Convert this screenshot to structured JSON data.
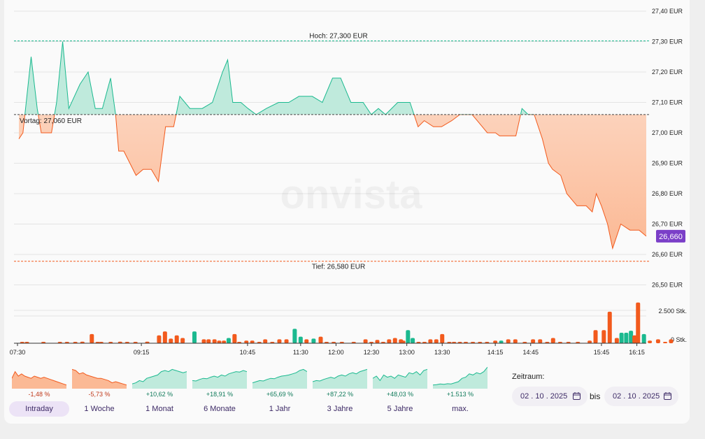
{
  "chart_data": {
    "type": "area",
    "watermark": "onvista",
    "currency": "EUR",
    "previous_close": 27.06,
    "high": 27.3,
    "low": 26.58,
    "last_price": "26,660",
    "high_label": "Hoch: 27,300 EUR",
    "low_label": "Tief: 26,580 EUR",
    "prev_label": "Vortag: 27,060 EUR",
    "ylim": [
      26.45,
      27.46
    ],
    "y_ticks": [
      {
        "value": 27.4,
        "label": "27,40 EUR"
      },
      {
        "value": 27.3,
        "label": "27,30 EUR"
      },
      {
        "value": 27.2,
        "label": "27,20 EUR"
      },
      {
        "value": 27.1,
        "label": "27,10 EUR"
      },
      {
        "value": 27.0,
        "label": "27,00 EUR"
      },
      {
        "value": 26.9,
        "label": "26,90 EUR"
      },
      {
        "value": 26.8,
        "label": "26,80 EUR"
      },
      {
        "value": 26.7,
        "label": "26,70 EUR"
      },
      {
        "value": 26.6,
        "label": "26,60 EUR"
      },
      {
        "value": 26.5,
        "label": "26,50 EUR"
      }
    ],
    "x_range_minutes": [
      450,
      980
    ],
    "x_ticks": [
      {
        "t": 450,
        "label": "07:30"
      },
      {
        "t": 555,
        "label": "09:15"
      },
      {
        "t": 645,
        "label": "10:45"
      },
      {
        "t": 690,
        "label": "11:30"
      },
      {
        "t": 720,
        "label": "12:00"
      },
      {
        "t": 750,
        "label": "12:30"
      },
      {
        "t": 780,
        "label": "13:00"
      },
      {
        "t": 810,
        "label": "13:30"
      },
      {
        "t": 855,
        "label": "14:15"
      },
      {
        "t": 885,
        "label": "14:45"
      },
      {
        "t": 945,
        "label": "15:45"
      },
      {
        "t": 975,
        "label": "16:15"
      }
    ],
    "price_series": [
      [
        0,
        26.98
      ],
      [
        4,
        27.0
      ],
      [
        12,
        27.25
      ],
      [
        18,
        27.08
      ],
      [
        22,
        27.0
      ],
      [
        32,
        27.0
      ],
      [
        37,
        27.1
      ],
      [
        43,
        27.3
      ],
      [
        49,
        27.08
      ],
      [
        60,
        27.16
      ],
      [
        68,
        27.2
      ],
      [
        75,
        27.08
      ],
      [
        82,
        27.08
      ],
      [
        90,
        27.18
      ],
      [
        95,
        27.06
      ],
      [
        98,
        26.94
      ],
      [
        103,
        26.94
      ],
      [
        115,
        26.86
      ],
      [
        122,
        26.88
      ],
      [
        130,
        26.88
      ],
      [
        137,
        26.84
      ],
      [
        144,
        27.02
      ],
      [
        152,
        27.02
      ],
      [
        158,
        27.12
      ],
      [
        168,
        27.08
      ],
      [
        180,
        27.08
      ],
      [
        190,
        27.1
      ],
      [
        200,
        27.2
      ],
      [
        205,
        27.24
      ],
      [
        210,
        27.1
      ],
      [
        218,
        27.1
      ],
      [
        225,
        27.08
      ],
      [
        233,
        27.06
      ],
      [
        243,
        27.08
      ],
      [
        255,
        27.1
      ],
      [
        265,
        27.1
      ],
      [
        275,
        27.12
      ],
      [
        288,
        27.12
      ],
      [
        298,
        27.1
      ],
      [
        308,
        27.18
      ],
      [
        316,
        27.18
      ],
      [
        326,
        27.1
      ],
      [
        338,
        27.1
      ],
      [
        346,
        27.06
      ],
      [
        353,
        27.08
      ],
      [
        360,
        27.06
      ],
      [
        372,
        27.1
      ],
      [
        384,
        27.1
      ],
      [
        392,
        27.02
      ],
      [
        398,
        27.04
      ],
      [
        407,
        27.02
      ],
      [
        415,
        27.02
      ],
      [
        425,
        27.04
      ],
      [
        433,
        27.06
      ],
      [
        445,
        27.06
      ],
      [
        450,
        27.04
      ],
      [
        460,
        27.0
      ],
      [
        468,
        27.0
      ],
      [
        472,
        26.99
      ],
      [
        480,
        26.99
      ],
      [
        488,
        26.99
      ],
      [
        494,
        27.08
      ],
      [
        500,
        27.06
      ],
      [
        506,
        27.06
      ],
      [
        514,
        26.98
      ],
      [
        520,
        26.9
      ],
      [
        524,
        26.88
      ],
      [
        532,
        26.86
      ],
      [
        538,
        26.8
      ],
      [
        548,
        26.76
      ],
      [
        557,
        26.76
      ],
      [
        563,
        26.74
      ],
      [
        567,
        26.8
      ],
      [
        572,
        26.76
      ],
      [
        578,
        26.7
      ],
      [
        583,
        26.62
      ],
      [
        591,
        26.7
      ],
      [
        600,
        26.68
      ],
      [
        609,
        26.68
      ],
      [
        616,
        26.66
      ]
    ],
    "volume_ticks": [
      {
        "value": 2500,
        "label": "2.500 Stk."
      },
      {
        "value": 0,
        "label": "0 Stk."
      }
    ],
    "volume_max": 3300,
    "volumes": [
      {
        "t": 454,
        "v": 30,
        "dir": "down"
      },
      {
        "t": 458,
        "v": 60,
        "dir": "down"
      },
      {
        "t": 472,
        "v": 20,
        "dir": "down"
      },
      {
        "t": 486,
        "v": 30,
        "dir": "down"
      },
      {
        "t": 492,
        "v": 40,
        "dir": "down"
      },
      {
        "t": 499,
        "v": 60,
        "dir": "down"
      },
      {
        "t": 505,
        "v": 120,
        "dir": "down"
      },
      {
        "t": 513,
        "v": 700,
        "dir": "down"
      },
      {
        "t": 518,
        "v": 40,
        "dir": "down"
      },
      {
        "t": 521,
        "v": 30,
        "dir": "down"
      },
      {
        "t": 529,
        "v": 80,
        "dir": "down"
      },
      {
        "t": 537,
        "v": 120,
        "dir": "down"
      },
      {
        "t": 543,
        "v": 100,
        "dir": "down"
      },
      {
        "t": 550,
        "v": 30,
        "dir": "down"
      },
      {
        "t": 560,
        "v": 120,
        "dir": "down"
      },
      {
        "t": 570,
        "v": 600,
        "dir": "down"
      },
      {
        "t": 575,
        "v": 900,
        "dir": "down"
      },
      {
        "t": 580,
        "v": 350,
        "dir": "down"
      },
      {
        "t": 585,
        "v": 600,
        "dir": "down"
      },
      {
        "t": 590,
        "v": 400,
        "dir": "down"
      },
      {
        "t": 600,
        "v": 900,
        "dir": "up"
      },
      {
        "t": 608,
        "v": 300,
        "dir": "down"
      },
      {
        "t": 612,
        "v": 300,
        "dir": "down"
      },
      {
        "t": 617,
        "v": 300,
        "dir": "down"
      },
      {
        "t": 621,
        "v": 200,
        "dir": "down"
      },
      {
        "t": 625,
        "v": 200,
        "dir": "down"
      },
      {
        "t": 629,
        "v": 400,
        "dir": "up"
      },
      {
        "t": 634,
        "v": 700,
        "dir": "down"
      },
      {
        "t": 638,
        "v": 100,
        "dir": "down"
      },
      {
        "t": 644,
        "v": 200,
        "dir": "down"
      },
      {
        "t": 649,
        "v": 200,
        "dir": "down"
      },
      {
        "t": 655,
        "v": 50,
        "dir": "down"
      },
      {
        "t": 660,
        "v": 300,
        "dir": "down"
      },
      {
        "t": 666,
        "v": 100,
        "dir": "down"
      },
      {
        "t": 672,
        "v": 300,
        "dir": "down"
      },
      {
        "t": 678,
        "v": 300,
        "dir": "down"
      },
      {
        "t": 685,
        "v": 1100,
        "dir": "up"
      },
      {
        "t": 690,
        "v": 500,
        "dir": "up"
      },
      {
        "t": 695,
        "v": 300,
        "dir": "down"
      },
      {
        "t": 701,
        "v": 350,
        "dir": "up"
      },
      {
        "t": 707,
        "v": 500,
        "dir": "down"
      },
      {
        "t": 712,
        "v": 100,
        "dir": "down"
      },
      {
        "t": 718,
        "v": 30,
        "dir": "down"
      },
      {
        "t": 725,
        "v": 50,
        "dir": "down"
      },
      {
        "t": 735,
        "v": 30,
        "dir": "down"
      },
      {
        "t": 745,
        "v": 300,
        "dir": "down"
      },
      {
        "t": 750,
        "v": 100,
        "dir": "down"
      },
      {
        "t": 755,
        "v": 250,
        "dir": "down"
      },
      {
        "t": 760,
        "v": 50,
        "dir": "down"
      },
      {
        "t": 765,
        "v": 300,
        "dir": "down"
      },
      {
        "t": 770,
        "v": 400,
        "dir": "down"
      },
      {
        "t": 775,
        "v": 300,
        "dir": "down"
      },
      {
        "t": 777,
        "v": 200,
        "dir": "down"
      },
      {
        "t": 781,
        "v": 1000,
        "dir": "up"
      },
      {
        "t": 785,
        "v": 400,
        "dir": "up"
      },
      {
        "t": 790,
        "v": 50,
        "dir": "down"
      },
      {
        "t": 795,
        "v": 50,
        "dir": "down"
      },
      {
        "t": 800,
        "v": 300,
        "dir": "down"
      },
      {
        "t": 805,
        "v": 300,
        "dir": "down"
      },
      {
        "t": 810,
        "v": 700,
        "dir": "down"
      },
      {
        "t": 816,
        "v": 30,
        "dir": "down"
      },
      {
        "t": 820,
        "v": 50,
        "dir": "down"
      },
      {
        "t": 825,
        "v": 50,
        "dir": "down"
      },
      {
        "t": 830,
        "v": 30,
        "dir": "down"
      },
      {
        "t": 836,
        "v": 50,
        "dir": "down"
      },
      {
        "t": 842,
        "v": 50,
        "dir": "down"
      },
      {
        "t": 848,
        "v": 30,
        "dir": "down"
      },
      {
        "t": 855,
        "v": 200,
        "dir": "down"
      },
      {
        "t": 860,
        "v": 200,
        "dir": "up"
      },
      {
        "t": 866,
        "v": 300,
        "dir": "down"
      },
      {
        "t": 872,
        "v": 300,
        "dir": "down"
      },
      {
        "t": 880,
        "v": 30,
        "dir": "down"
      },
      {
        "t": 887,
        "v": 300,
        "dir": "down"
      },
      {
        "t": 893,
        "v": 300,
        "dir": "down"
      },
      {
        "t": 899,
        "v": 50,
        "dir": "down"
      },
      {
        "t": 904,
        "v": 400,
        "dir": "down"
      },
      {
        "t": 910,
        "v": 50,
        "dir": "down"
      },
      {
        "t": 917,
        "v": 30,
        "dir": "down"
      },
      {
        "t": 925,
        "v": 50,
        "dir": "down"
      },
      {
        "t": 935,
        "v": 200,
        "dir": "down"
      },
      {
        "t": 940,
        "v": 1000,
        "dir": "down"
      },
      {
        "t": 947,
        "v": 1000,
        "dir": "down"
      },
      {
        "t": 952,
        "v": 2400,
        "dir": "down"
      },
      {
        "t": 958,
        "v": 400,
        "dir": "down"
      },
      {
        "t": 962,
        "v": 800,
        "dir": "up"
      },
      {
        "t": 966,
        "v": 800,
        "dir": "up"
      },
      {
        "t": 970,
        "v": 950,
        "dir": "up"
      },
      {
        "t": 973,
        "v": 600,
        "dir": "down"
      },
      {
        "t": 976,
        "v": 3100,
        "dir": "down"
      },
      {
        "t": 981,
        "v": 700,
        "dir": "up"
      },
      {
        "t": 986,
        "v": 200,
        "dir": "down"
      },
      {
        "t": 993,
        "v": 300,
        "dir": "down"
      },
      {
        "t": 999,
        "v": 100,
        "dir": "down"
      },
      {
        "t": 1004,
        "v": 300,
        "dir": "down"
      }
    ]
  },
  "colors": {
    "up": "#1bb98f",
    "up_fill": "#bfeadc",
    "down": "#f25a1d",
    "down_fill": "#fbb995",
    "label_bg": "#7b3fc8"
  },
  "ranges": [
    {
      "label": "Intraday",
      "change": "-1,48 %",
      "trend": "down",
      "active": true,
      "spark": [
        0.6,
        0.3,
        0.5,
        0.4,
        0.5,
        0.55,
        0.6,
        0.5,
        0.55,
        0.6,
        0.55,
        0.6,
        0.65,
        0.7,
        0.75,
        0.8,
        0.85,
        0.9
      ]
    },
    {
      "label": "1 Woche",
      "change": "-5,73 %",
      "trend": "down",
      "active": false,
      "spark": [
        0.2,
        0.25,
        0.4,
        0.35,
        0.45,
        0.5,
        0.55,
        0.6,
        0.6,
        0.65,
        0.7,
        0.8,
        0.75,
        0.8,
        0.85,
        0.9
      ]
    },
    {
      "label": "1 Monat",
      "change": "+10,62 %",
      "trend": "up",
      "active": false,
      "spark": [
        0.85,
        0.8,
        0.7,
        0.75,
        0.6,
        0.55,
        0.5,
        0.45,
        0.3,
        0.25,
        0.3,
        0.2,
        0.25,
        0.3,
        0.35,
        0.3
      ]
    },
    {
      "label": "6 Monate",
      "change": "+18,91 %",
      "trend": "up",
      "active": false,
      "spark": [
        0.7,
        0.72,
        0.65,
        0.6,
        0.62,
        0.55,
        0.5,
        0.55,
        0.45,
        0.5,
        0.4,
        0.35,
        0.3,
        0.32,
        0.25,
        0.3
      ]
    },
    {
      "label": "1 Jahr",
      "change": "+65,69 %",
      "trend": "up",
      "active": false,
      "spark": [
        0.8,
        0.75,
        0.7,
        0.72,
        0.65,
        0.6,
        0.62,
        0.55,
        0.5,
        0.48,
        0.45,
        0.4,
        0.35,
        0.25,
        0.2,
        0.3
      ]
    },
    {
      "label": "3 Jahre",
      "change": "+87,22 %",
      "trend": "up",
      "active": false,
      "spark": [
        0.75,
        0.7,
        0.72,
        0.65,
        0.6,
        0.55,
        0.6,
        0.5,
        0.45,
        0.5,
        0.4,
        0.35,
        0.4,
        0.3,
        0.25,
        0.2
      ]
    },
    {
      "label": "5 Jahre",
      "change": "+48,03 %",
      "trend": "up",
      "active": false,
      "spark": [
        0.6,
        0.5,
        0.7,
        0.45,
        0.55,
        0.5,
        0.6,
        0.45,
        0.5,
        0.55,
        0.35,
        0.4,
        0.3,
        0.45,
        0.25,
        0.2
      ]
    },
    {
      "label": "max.",
      "change": "+1.513 %",
      "trend": "up",
      "active": false,
      "spark": [
        0.9,
        0.88,
        0.85,
        0.87,
        0.84,
        0.85,
        0.8,
        0.75,
        0.6,
        0.55,
        0.4,
        0.45,
        0.35,
        0.4,
        0.3,
        0.1
      ]
    }
  ],
  "zeitraum": {
    "label": "Zeitraum:",
    "from": "02 . 10 . 2025",
    "to": "02 . 10 . 2025",
    "bis": "bis"
  }
}
